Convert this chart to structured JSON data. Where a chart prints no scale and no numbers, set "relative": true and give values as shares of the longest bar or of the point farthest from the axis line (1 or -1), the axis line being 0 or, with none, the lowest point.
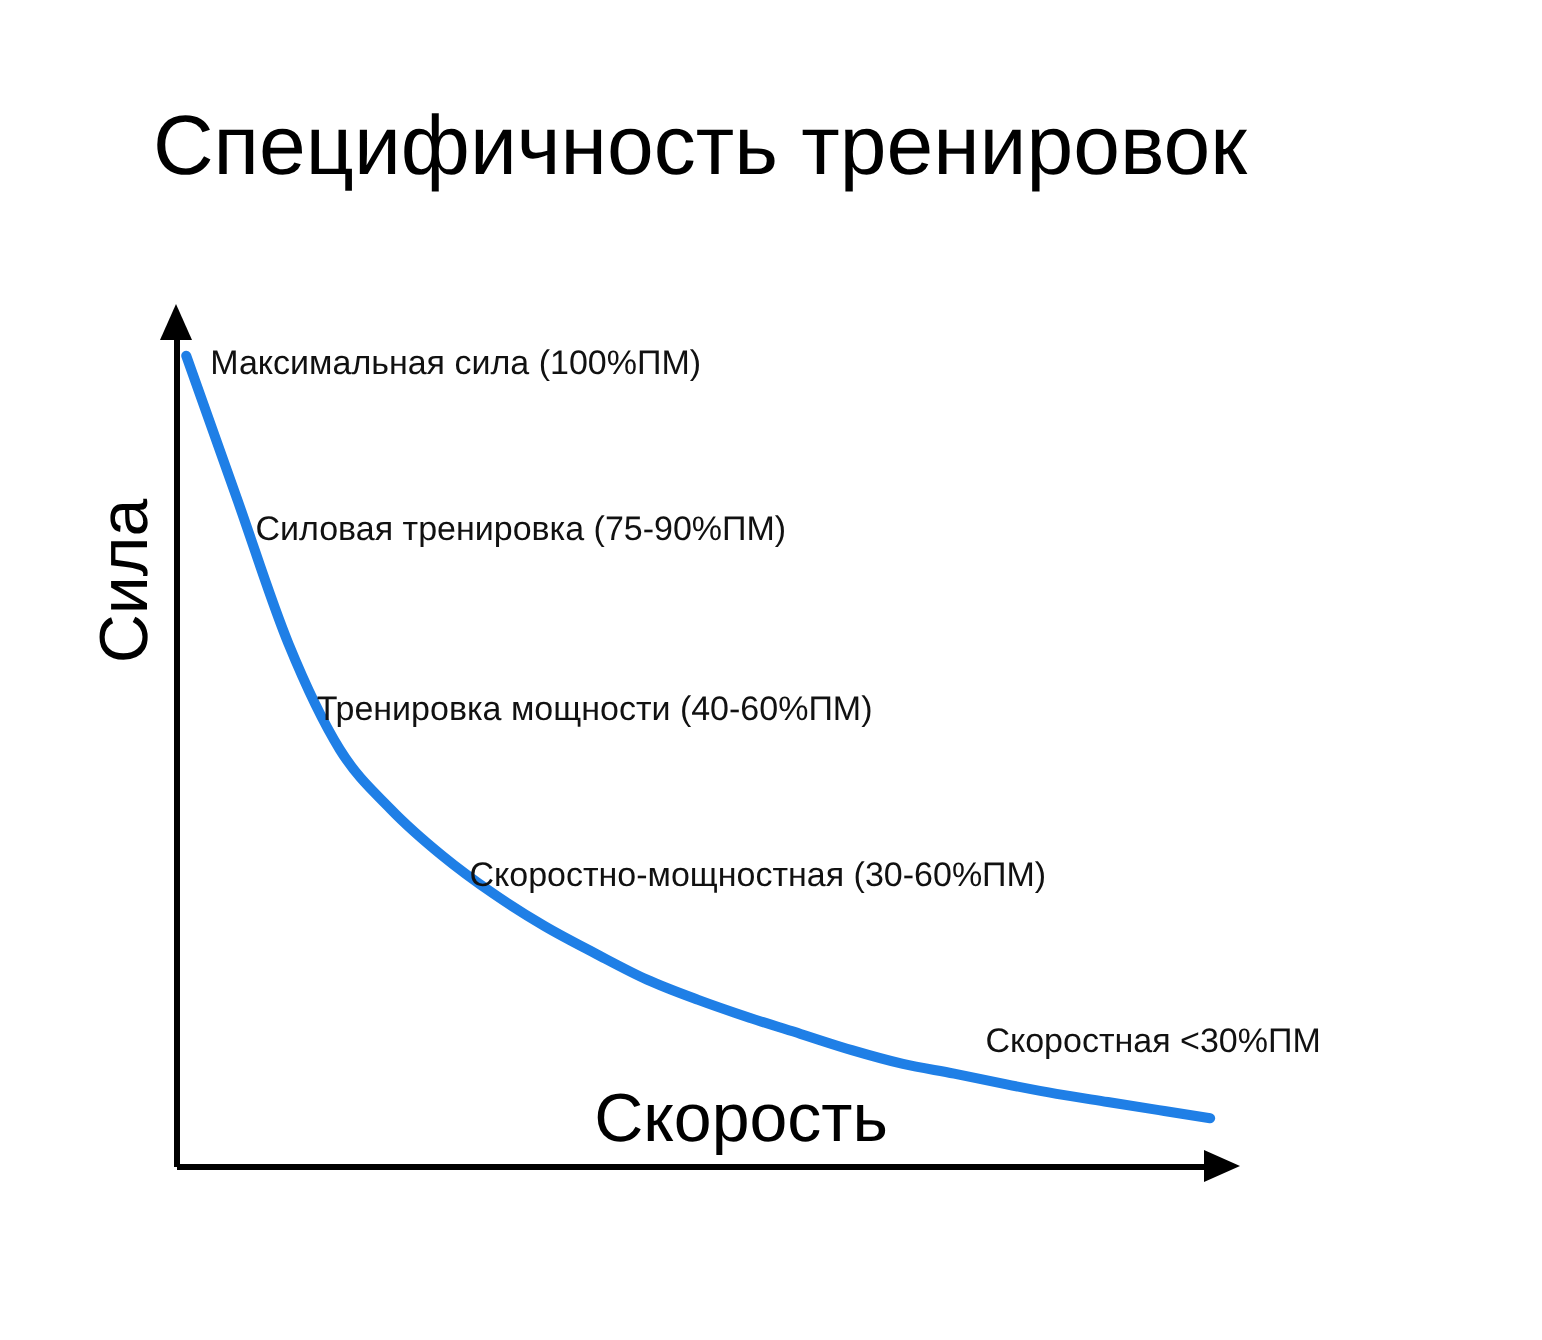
{
  "chart_data": {
    "type": "line",
    "title": "Специфичность тренировок",
    "xlabel": "Скорость",
    "ylabel": "Сила",
    "relative": true,
    "grid": false,
    "color": "#1f7fe6",
    "line_style": "solid",
    "categories": [
      null,
      null,
      null,
      null,
      null,
      null,
      null,
      null,
      null,
      null,
      null,
      null,
      null,
      null,
      null,
      null,
      null,
      null,
      null,
      null,
      null
    ],
    "values": [
      1.0,
      0.822,
      0.644,
      0.514,
      0.44,
      0.383,
      0.336,
      0.296,
      0.262,
      0.23,
      0.205,
      0.183,
      0.163,
      0.143,
      0.126,
      0.114,
      0.101,
      0.089,
      0.079,
      0.069,
      0.059
    ],
    "annotations": [
      "Максимальная сила (100%ПМ)",
      "Силовая тренировка (75-90%ПМ)",
      "Тренировка мощности (40-60%ПМ)",
      "Скоростно-мощностная (30-60%ПМ)",
      "Скоростная <30%ПМ"
    ]
  }
}
